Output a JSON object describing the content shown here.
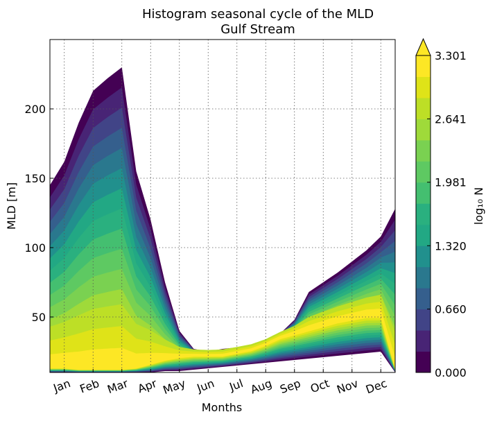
{
  "chart_data": {
    "type": "heatmap",
    "title": "Histogram seasonal cycle of the MLD",
    "subtitle": "Gulf Stream",
    "xlabel": "Months",
    "ylabel": "MLD [m]",
    "x_categories": [
      "Jan",
      "Feb",
      "Mar",
      "Apr",
      "May",
      "Jun",
      "Jul",
      "Aug",
      "Sep",
      "Oct",
      "Nov",
      "Dec"
    ],
    "y_ticks": [
      "50",
      "100",
      "150",
      "200"
    ],
    "y_tick_values": [
      50,
      100,
      150,
      200
    ],
    "ylim": [
      10,
      250
    ],
    "grid": true,
    "colorbar": {
      "label": "log₁₀ N",
      "tick_labels": [
        "0.000",
        "0.660",
        "1.320",
        "1.981",
        "2.641",
        "3.301"
      ],
      "tick_values": [
        0.0,
        0.66,
        1.32,
        1.981,
        2.641,
        3.301
      ],
      "levels": 15,
      "extend": "max",
      "colors": [
        "#440154",
        "#482475",
        "#414487",
        "#355f8d",
        "#2a788e",
        "#21908d",
        "#22a884",
        "#2ab07f",
        "#44bf70",
        "#5ec962",
        "#7ad151",
        "#9fda3a",
        "#bddf26",
        "#dfe318",
        "#fde725"
      ]
    },
    "mld_envelope": {
      "months": [
        0.5,
        1,
        1.5,
        2,
        2.5,
        3,
        3.5,
        4,
        4.5,
        5,
        5.5,
        6,
        6.5,
        7,
        7.5,
        8,
        8.5,
        9,
        9.5,
        10,
        10.5,
        11,
        11.5,
        12,
        12.5
      ],
      "mld_max": [
        145,
        162,
        190,
        213,
        222,
        230,
        155,
        120,
        75,
        40,
        27,
        25,
        27,
        28,
        30,
        32,
        38,
        48,
        68,
        75,
        82,
        90,
        98,
        108,
        128
      ],
      "mld_min": [
        10,
        10,
        10,
        10,
        10,
        10,
        10,
        10,
        11,
        11,
        12,
        13,
        14,
        15,
        16,
        17,
        18,
        19,
        20,
        21,
        22,
        23,
        24,
        25,
        10
      ],
      "peak_density_mld": [
        13,
        13,
        12,
        12,
        12,
        12,
        13,
        16,
        19,
        21,
        22,
        22,
        22,
        24,
        26,
        30,
        35,
        38,
        41,
        44,
        47,
        49,
        51,
        51,
        12
      ]
    }
  }
}
